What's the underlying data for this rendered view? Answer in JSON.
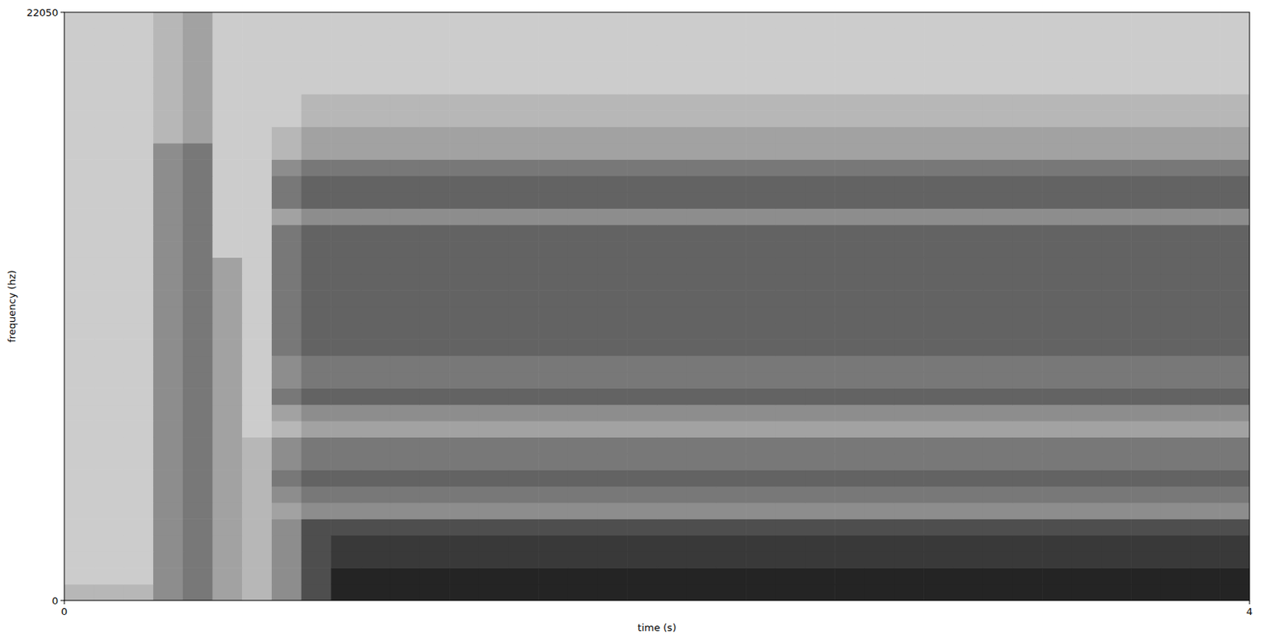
{
  "chart_data": {
    "type": "heatmap",
    "x_label": "time (s)",
    "y_label": "frequency (hz)",
    "xlim": [
      0,
      4
    ],
    "xticks": [
      0,
      4
    ],
    "ylim": [
      0,
      22050
    ],
    "yticks": [
      0,
      22050
    ],
    "zlim": [
      0,
      9
    ],
    "x": [
      0,
      0.1,
      0.2,
      0.3,
      0.4,
      0.5,
      0.6,
      0.7,
      0.8,
      0.9,
      1,
      1.1,
      1.2,
      1.3,
      1.4,
      1.5,
      1.6,
      1.7,
      1.8,
      1.9,
      2,
      2.1,
      2.2,
      2.3,
      2.4,
      2.5,
      2.6,
      2.7,
      2.8,
      2.9,
      3,
      3.1,
      3.2,
      3.3,
      3.4,
      3.5,
      3.6,
      3.7,
      3.8,
      3.9
    ],
    "y": [
      0,
      612.5,
      1225,
      1837.5,
      2450,
      3062.5,
      3675,
      4287.5,
      4900,
      5512.5,
      6125,
      6737.5,
      7350,
      7962.5,
      8575,
      9187.5,
      9800,
      10412.5,
      11025,
      11637.5,
      12250,
      12862.5,
      13475,
      14087.5,
      14700,
      15312.5,
      15925,
      16537.5,
      17150,
      17762.5,
      18375,
      18987.5,
      19600,
      20212.5,
      20825,
      21437.5
    ],
    "cells": [
      [
        2,
        2,
        2,
        4,
        5,
        3,
        2,
        4,
        7,
        9,
        9,
        9,
        9,
        9,
        9,
        9,
        9,
        9,
        9,
        9,
        9,
        9,
        9,
        9,
        9,
        9,
        9,
        9,
        9,
        9,
        9,
        9,
        9,
        9,
        9,
        9,
        9,
        9,
        9,
        9
      ],
      [
        1,
        1,
        1,
        4,
        5,
        3,
        2,
        4,
        7,
        9,
        9,
        9,
        9,
        9,
        9,
        9,
        9,
        9,
        9,
        9,
        9,
        9,
        9,
        9,
        9,
        9,
        9,
        9,
        9,
        9,
        9,
        9,
        9,
        9,
        9,
        9,
        9,
        9,
        9,
        9
      ],
      [
        1,
        1,
        1,
        4,
        5,
        3,
        2,
        4,
        7,
        8,
        8,
        8,
        8,
        8,
        8,
        8,
        8,
        8,
        8,
        8,
        8,
        8,
        8,
        8,
        8,
        8,
        8,
        8,
        8,
        8,
        8,
        8,
        8,
        8,
        8,
        8,
        8,
        8,
        8,
        8
      ],
      [
        1,
        1,
        1,
        4,
        5,
        3,
        2,
        4,
        7,
        8,
        8,
        8,
        8,
        8,
        8,
        8,
        8,
        8,
        8,
        8,
        8,
        8,
        8,
        8,
        8,
        8,
        8,
        8,
        8,
        8,
        8,
        8,
        8,
        8,
        8,
        8,
        8,
        8,
        8,
        8
      ],
      [
        1,
        1,
        1,
        4,
        5,
        3,
        2,
        4,
        7,
        7,
        7,
        7,
        7,
        7,
        7,
        7,
        7,
        7,
        7,
        7,
        7,
        7,
        7,
        7,
        7,
        7,
        7,
        7,
        7,
        7,
        7,
        7,
        7,
        7,
        7,
        7,
        7,
        7,
        7,
        7
      ],
      [
        1,
        1,
        1,
        4,
        5,
        3,
        2,
        3,
        4,
        4,
        4,
        4,
        4,
        4,
        4,
        4,
        4,
        4,
        4,
        4,
        4,
        4,
        4,
        4,
        4,
        4,
        4,
        4,
        4,
        4,
        4,
        4,
        4,
        4,
        4,
        4,
        4,
        4,
        4,
        4
      ],
      [
        1,
        1,
        1,
        4,
        5,
        3,
        2,
        4,
        5,
        5,
        5,
        5,
        5,
        5,
        5,
        5,
        5,
        5,
        5,
        5,
        5,
        5,
        5,
        5,
        5,
        5,
        5,
        5,
        5,
        5,
        5,
        5,
        5,
        5,
        5,
        5,
        5,
        5,
        5,
        5
      ],
      [
        1,
        1,
        1,
        4,
        5,
        3,
        2,
        5,
        6,
        6,
        6,
        6,
        6,
        6,
        6,
        6,
        6,
        6,
        6,
        6,
        6,
        6,
        6,
        6,
        6,
        6,
        6,
        6,
        6,
        6,
        6,
        6,
        6,
        6,
        6,
        6,
        6,
        6,
        6,
        6
      ],
      [
        1,
        1,
        1,
        4,
        5,
        3,
        2,
        4,
        5,
        5,
        5,
        5,
        5,
        5,
        5,
        5,
        5,
        5,
        5,
        5,
        5,
        5,
        5,
        5,
        5,
        5,
        5,
        5,
        5,
        5,
        5,
        5,
        5,
        5,
        5,
        5,
        5,
        5,
        5,
        5
      ],
      [
        1,
        1,
        1,
        4,
        5,
        3,
        2,
        4,
        5,
        5,
        5,
        5,
        5,
        5,
        5,
        5,
        5,
        5,
        5,
        5,
        5,
        5,
        5,
        5,
        5,
        5,
        5,
        5,
        5,
        5,
        5,
        5,
        5,
        5,
        5,
        5,
        5,
        5,
        5,
        5
      ],
      [
        1,
        1,
        1,
        4,
        5,
        3,
        1,
        2,
        3,
        3,
        3,
        3,
        3,
        3,
        3,
        3,
        3,
        3,
        3,
        3,
        3,
        3,
        3,
        3,
        3,
        3,
        3,
        3,
        3,
        3,
        3,
        3,
        3,
        3,
        3,
        3,
        3,
        3,
        3,
        3
      ],
      [
        1,
        1,
        1,
        4,
        5,
        3,
        1,
        3,
        4,
        4,
        4,
        4,
        4,
        4,
        4,
        4,
        4,
        4,
        4,
        4,
        4,
        4,
        4,
        4,
        4,
        4,
        4,
        4,
        4,
        4,
        4,
        4,
        4,
        4,
        4,
        4,
        4,
        4,
        4,
        4
      ],
      [
        1,
        1,
        1,
        4,
        5,
        3,
        1,
        5,
        6,
        6,
        6,
        6,
        6,
        6,
        6,
        6,
        6,
        6,
        6,
        6,
        6,
        6,
        6,
        6,
        6,
        6,
        6,
        6,
        6,
        6,
        6,
        6,
        6,
        6,
        6,
        6,
        6,
        6,
        6,
        6
      ],
      [
        1,
        1,
        1,
        4,
        5,
        3,
        1,
        4,
        5,
        5,
        5,
        5,
        5,
        5,
        5,
        5,
        5,
        5,
        5,
        5,
        5,
        5,
        5,
        5,
        5,
        5,
        5,
        5,
        5,
        5,
        5,
        5,
        5,
        5,
        5,
        5,
        5,
        5,
        5,
        5
      ],
      [
        1,
        1,
        1,
        4,
        5,
        3,
        1,
        4,
        5,
        5,
        5,
        5,
        5,
        5,
        5,
        5,
        5,
        5,
        5,
        5,
        5,
        5,
        5,
        5,
        5,
        5,
        5,
        5,
        5,
        5,
        5,
        5,
        5,
        5,
        5,
        5,
        5,
        5,
        5,
        5
      ],
      [
        1,
        1,
        1,
        4,
        5,
        3,
        1,
        5,
        6,
        6,
        6,
        6,
        6,
        6,
        6,
        6,
        6,
        6,
        6,
        6,
        6,
        6,
        6,
        6,
        6,
        6,
        6,
        6,
        6,
        6,
        6,
        6,
        6,
        6,
        6,
        6,
        6,
        6,
        6,
        6
      ],
      [
        1,
        1,
        1,
        4,
        5,
        3,
        1,
        5,
        6,
        6,
        6,
        6,
        6,
        6,
        6,
        6,
        6,
        6,
        6,
        6,
        6,
        6,
        6,
        6,
        6,
        6,
        6,
        6,
        6,
        6,
        6,
        6,
        6,
        6,
        6,
        6,
        6,
        6,
        6,
        6
      ],
      [
        1,
        1,
        1,
        4,
        5,
        3,
        1,
        5,
        6,
        6,
        6,
        6,
        6,
        6,
        6,
        6,
        6,
        6,
        6,
        6,
        6,
        6,
        6,
        6,
        6,
        6,
        6,
        6,
        6,
        6,
        6,
        6,
        6,
        6,
        6,
        6,
        6,
        6,
        6,
        6
      ],
      [
        1,
        1,
        1,
        4,
        5,
        3,
        1,
        5,
        6,
        6,
        6,
        6,
        6,
        6,
        6,
        6,
        6,
        6,
        6,
        6,
        6,
        6,
        6,
        6,
        6,
        6,
        6,
        6,
        6,
        6,
        6,
        6,
        6,
        6,
        6,
        6,
        6,
        6,
        6,
        6
      ],
      [
        1,
        1,
        1,
        4,
        5,
        3,
        1,
        5,
        6,
        6,
        6,
        6,
        6,
        6,
        6,
        6,
        6,
        6,
        6,
        6,
        6,
        6,
        6,
        6,
        6,
        6,
        6,
        6,
        6,
        6,
        6,
        6,
        6,
        6,
        6,
        6,
        6,
        6,
        6,
        6
      ],
      [
        1,
        1,
        1,
        4,
        5,
        3,
        1,
        5,
        6,
        6,
        6,
        6,
        6,
        6,
        6,
        6,
        6,
        6,
        6,
        6,
        6,
        6,
        6,
        6,
        6,
        6,
        6,
        6,
        6,
        6,
        6,
        6,
        6,
        6,
        6,
        6,
        6,
        6,
        6,
        6
      ],
      [
        1,
        1,
        1,
        4,
        5,
        1,
        1,
        5,
        6,
        6,
        6,
        6,
        6,
        6,
        6,
        6,
        6,
        6,
        6,
        6,
        6,
        6,
        6,
        6,
        6,
        6,
        6,
        6,
        6,
        6,
        6,
        6,
        6,
        6,
        6,
        6,
        6,
        6,
        6,
        6
      ],
      [
        1,
        1,
        1,
        4,
        5,
        1,
        1,
        5,
        6,
        6,
        6,
        6,
        6,
        6,
        6,
        6,
        6,
        6,
        6,
        6,
        6,
        6,
        6,
        6,
        6,
        6,
        6,
        6,
        6,
        6,
        6,
        6,
        6,
        6,
        6,
        6,
        6,
        6,
        6,
        6
      ],
      [
        1,
        1,
        1,
        4,
        5,
        1,
        1,
        3,
        4,
        4,
        4,
        4,
        4,
        4,
        4,
        4,
        4,
        4,
        4,
        4,
        4,
        4,
        4,
        4,
        4,
        4,
        4,
        4,
        4,
        4,
        4,
        4,
        4,
        4,
        4,
        4,
        4,
        4,
        4,
        4
      ],
      [
        1,
        1,
        1,
        4,
        5,
        1,
        1,
        5,
        6,
        6,
        6,
        6,
        6,
        6,
        6,
        6,
        6,
        6,
        6,
        6,
        6,
        6,
        6,
        6,
        6,
        6,
        6,
        6,
        6,
        6,
        6,
        6,
        6,
        6,
        6,
        6,
        6,
        6,
        6,
        6
      ],
      [
        1,
        1,
        1,
        4,
        5,
        1,
        1,
        5,
        6,
        6,
        6,
        6,
        6,
        6,
        6,
        6,
        6,
        6,
        6,
        6,
        6,
        6,
        6,
        6,
        6,
        6,
        6,
        6,
        6,
        6,
        6,
        6,
        6,
        6,
        6,
        6,
        6,
        6,
        6,
        6
      ],
      [
        1,
        1,
        1,
        4,
        5,
        1,
        1,
        4,
        5,
        5,
        5,
        5,
        5,
        5,
        5,
        5,
        5,
        5,
        5,
        5,
        5,
        5,
        5,
        5,
        5,
        5,
        5,
        5,
        5,
        5,
        5,
        5,
        5,
        5,
        5,
        5,
        5,
        5,
        5,
        5
      ],
      [
        1,
        1,
        1,
        4,
        5,
        1,
        1,
        2,
        3,
        3,
        3,
        3,
        3,
        3,
        3,
        3,
        3,
        3,
        3,
        3,
        3,
        3,
        3,
        3,
        3,
        3,
        3,
        3,
        3,
        3,
        3,
        3,
        3,
        3,
        3,
        3,
        3,
        3,
        3,
        3
      ],
      [
        1,
        1,
        1,
        2,
        3,
        1,
        1,
        2,
        3,
        3,
        3,
        3,
        3,
        3,
        3,
        3,
        3,
        3,
        3,
        3,
        3,
        3,
        3,
        3,
        3,
        3,
        3,
        3,
        3,
        3,
        3,
        3,
        3,
        3,
        3,
        3,
        3,
        3,
        3,
        3
      ],
      [
        1,
        1,
        1,
        2,
        3,
        1,
        1,
        1,
        2,
        2,
        2,
        2,
        2,
        2,
        2,
        2,
        2,
        2,
        2,
        2,
        2,
        2,
        2,
        2,
        2,
        2,
        2,
        2,
        2,
        2,
        2,
        2,
        2,
        2,
        2,
        2,
        2,
        2,
        2,
        2
      ],
      [
        1,
        1,
        1,
        2,
        3,
        1,
        1,
        1,
        2,
        2,
        2,
        2,
        2,
        2,
        2,
        2,
        2,
        2,
        2,
        2,
        2,
        2,
        2,
        2,
        2,
        2,
        2,
        2,
        2,
        2,
        2,
        2,
        2,
        2,
        2,
        2,
        2,
        2,
        2,
        2
      ],
      [
        1,
        1,
        1,
        2,
        3,
        1,
        1,
        1,
        1,
        1,
        1,
        1,
        1,
        1,
        1,
        1,
        1,
        1,
        1,
        1,
        1,
        1,
        1,
        1,
        1,
        1,
        1,
        1,
        1,
        1,
        1,
        1,
        1,
        1,
        1,
        1,
        1,
        1,
        1,
        1
      ],
      [
        1,
        1,
        1,
        2,
        3,
        1,
        1,
        1,
        1,
        1,
        1,
        1,
        1,
        1,
        1,
        1,
        1,
        1,
        1,
        1,
        1,
        1,
        1,
        1,
        1,
        1,
        1,
        1,
        1,
        1,
        1,
        1,
        1,
        1,
        1,
        1,
        1,
        1,
        1,
        1
      ],
      [
        1,
        1,
        1,
        2,
        3,
        1,
        1,
        1,
        1,
        1,
        1,
        1,
        1,
        1,
        1,
        1,
        1,
        1,
        1,
        1,
        1,
        1,
        1,
        1,
        1,
        1,
        1,
        1,
        1,
        1,
        1,
        1,
        1,
        1,
        1,
        1,
        1,
        1,
        1,
        1
      ],
      [
        1,
        1,
        1,
        2,
        3,
        1,
        1,
        1,
        1,
        1,
        1,
        1,
        1,
        1,
        1,
        1,
        1,
        1,
        1,
        1,
        1,
        1,
        1,
        1,
        1,
        1,
        1,
        1,
        1,
        1,
        1,
        1,
        1,
        1,
        1,
        1,
        1,
        1,
        1,
        1
      ],
      [
        1,
        1,
        1,
        2,
        3,
        1,
        1,
        1,
        1,
        1,
        1,
        1,
        1,
        1,
        1,
        1,
        1,
        1,
        1,
        1,
        1,
        1,
        1,
        1,
        1,
        1,
        1,
        1,
        1,
        1,
        1,
        1,
        1,
        1,
        1,
        1,
        1,
        1,
        1,
        1
      ]
    ]
  }
}
